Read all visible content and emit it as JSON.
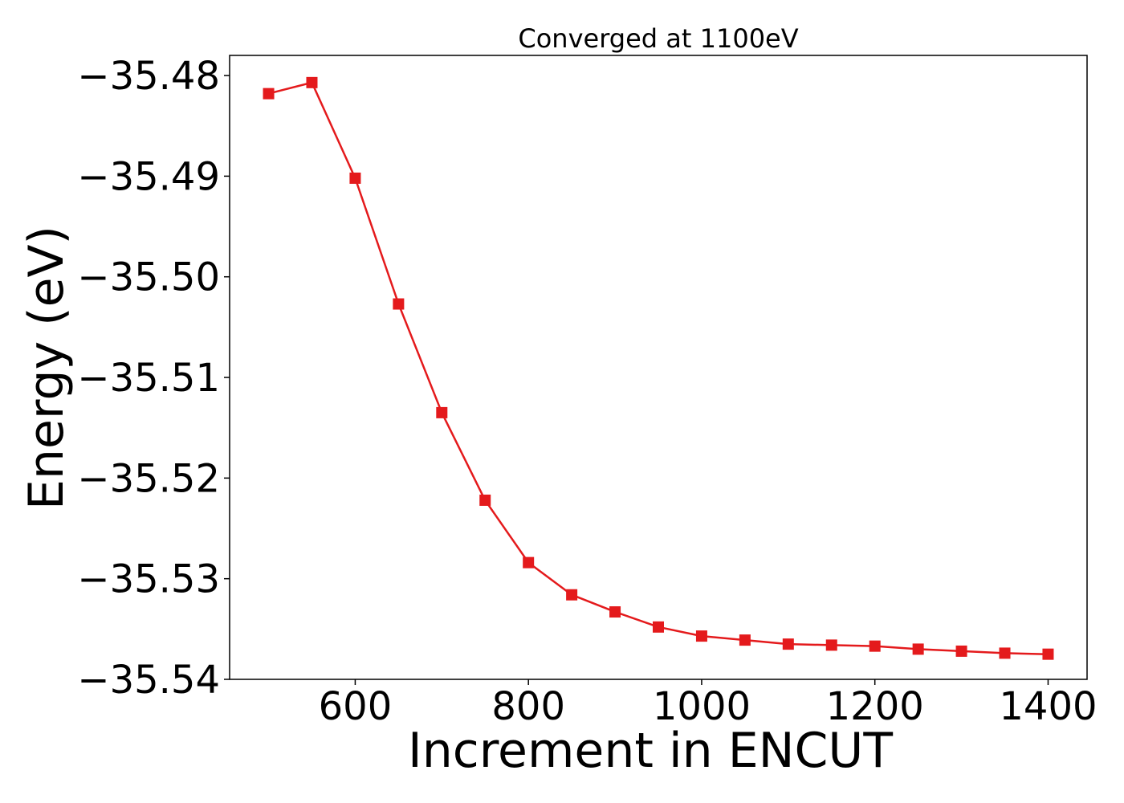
{
  "chart_data": {
    "type": "line",
    "title": "Converged at 1100eV",
    "xlabel": "Increment in ENCUT",
    "ylabel": "Energy (eV)",
    "xlim": [
      455,
      1445
    ],
    "ylim": [
      -35.54,
      -35.478
    ],
    "x_ticks": [
      600,
      800,
      1000,
      1200,
      1400
    ],
    "x_tick_labels": [
      "600",
      "800",
      "1000",
      "1200",
      "1400"
    ],
    "y_ticks": [
      -35.48,
      -35.49,
      -35.5,
      -35.51,
      -35.52,
      -35.53,
      -35.54
    ],
    "y_tick_labels": [
      "−35.48",
      "−35.49",
      "−35.50",
      "−35.51",
      "−35.52",
      "−35.53",
      "−35.54"
    ],
    "grid": false,
    "series": [
      {
        "color": "#e41a1c",
        "marker": "square",
        "x": [
          500,
          550,
          600,
          650,
          700,
          750,
          800,
          850,
          900,
          950,
          1000,
          1050,
          1100,
          1150,
          1200,
          1250,
          1300,
          1350,
          1400
        ],
        "y": [
          -35.4818,
          -35.4807,
          -35.4902,
          -35.5027,
          -35.5135,
          -35.5222,
          -35.5284,
          -35.5316,
          -35.5333,
          -35.5348,
          -35.5357,
          -35.5361,
          -35.5365,
          -35.5366,
          -35.5367,
          -35.537,
          -35.5372,
          -35.5374,
          -35.5375
        ]
      }
    ]
  }
}
